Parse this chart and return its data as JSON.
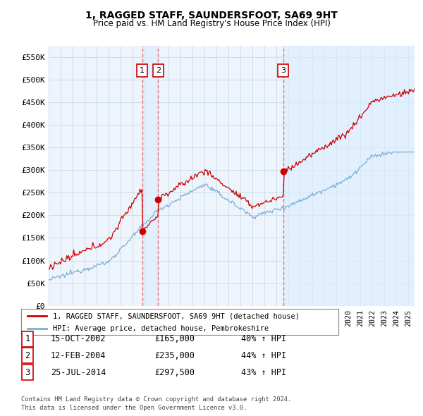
{
  "title": "1, RAGGED STAFF, SAUNDERSFOOT, SA69 9HT",
  "subtitle": "Price paid vs. HM Land Registry's House Price Index (HPI)",
  "legend_line1": "1, RAGGED STAFF, SAUNDERSFOOT, SA69 9HT (detached house)",
  "legend_line2": "HPI: Average price, detached house, Pembrokeshire",
  "footer1": "Contains HM Land Registry data © Crown copyright and database right 2024.",
  "footer2": "This data is licensed under the Open Government Licence v3.0.",
  "sale_color": "#cc0000",
  "hpi_color": "#7bafd4",
  "vline_color": "#e87878",
  "shade_color": "#ddeeff",
  "ylim": [
    0,
    575000
  ],
  "xlim": [
    1995.0,
    2025.5
  ],
  "yticks": [
    0,
    50000,
    100000,
    150000,
    200000,
    250000,
    300000,
    350000,
    400000,
    450000,
    500000,
    550000
  ],
  "ytick_labels": [
    "£0",
    "£50K",
    "£100K",
    "£150K",
    "£200K",
    "£250K",
    "£300K",
    "£350K",
    "£400K",
    "£450K",
    "£500K",
    "£550K"
  ],
  "sales": [
    {
      "label": "1",
      "date_num": 2002.79,
      "price": 165000,
      "date_str": "15-OCT-2002",
      "pct": "40% ↑ HPI"
    },
    {
      "label": "2",
      "date_num": 2004.12,
      "price": 235000,
      "date_str": "12-FEB-2004",
      "pct": "44% ↑ HPI"
    },
    {
      "label": "3",
      "date_num": 2014.56,
      "price": 297500,
      "date_str": "25-JUL-2014",
      "pct": "43% ↑ HPI"
    }
  ],
  "background_color": "#ffffff",
  "plot_bg_color": "#eef4fb",
  "grid_color": "#c8d8e8"
}
